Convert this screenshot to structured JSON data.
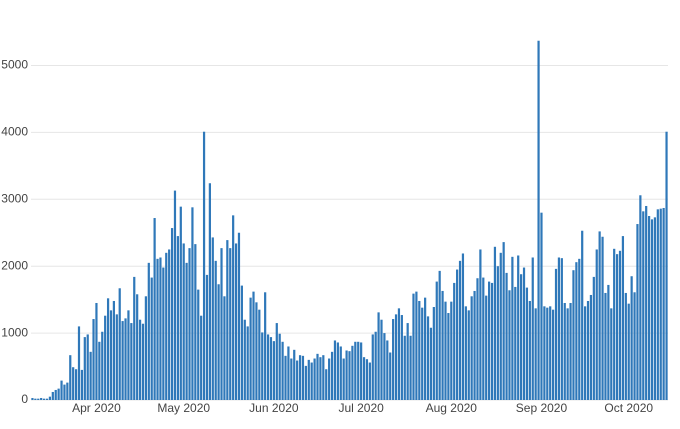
{
  "chart_data": {
    "type": "bar",
    "categories": [
      null,
      null,
      null,
      null,
      null,
      null,
      null,
      null,
      null,
      null,
      null,
      null,
      null,
      null,
      null,
      null,
      null,
      null,
      null,
      null,
      null,
      null,
      "Apr 2020",
      null,
      null,
      null,
      null,
      null,
      null,
      null,
      null,
      null,
      null,
      null,
      null,
      null,
      null,
      null,
      null,
      null,
      null,
      null,
      null,
      null,
      null,
      null,
      null,
      null,
      null,
      null,
      null,
      null,
      "May 2020",
      null,
      null,
      null,
      null,
      null,
      null,
      null,
      null,
      null,
      null,
      null,
      null,
      null,
      null,
      null,
      null,
      null,
      null,
      null,
      null,
      null,
      null,
      null,
      null,
      null,
      null,
      null,
      null,
      null,
      null,
      "Jun 2020",
      null,
      null,
      null,
      null,
      null,
      null,
      null,
      null,
      null,
      null,
      null,
      null,
      null,
      null,
      null,
      null,
      null,
      null,
      null,
      null,
      null,
      null,
      null,
      null,
      null,
      null,
      null,
      null,
      null,
      "Jul 2020",
      null,
      null,
      null,
      null,
      null,
      null,
      null,
      null,
      null,
      null,
      null,
      null,
      null,
      null,
      null,
      null,
      null,
      null,
      null,
      null,
      null,
      null,
      null,
      null,
      null,
      null,
      null,
      null,
      null,
      null,
      "Aug 2020",
      null,
      null,
      null,
      null,
      null,
      null,
      null,
      null,
      null,
      null,
      null,
      null,
      null,
      null,
      null,
      null,
      null,
      null,
      null,
      null,
      null,
      null,
      null,
      null,
      null,
      null,
      null,
      null,
      null,
      null,
      "Sep 2020",
      null,
      null,
      null,
      null,
      null,
      null,
      null,
      null,
      null,
      null,
      null,
      null,
      null,
      null,
      null,
      null,
      null,
      null,
      null,
      null,
      null,
      null,
      null,
      null,
      null,
      null,
      null,
      null,
      null,
      "Oct 2020",
      null,
      null,
      null,
      null,
      null,
      null,
      null,
      null,
      null,
      null,
      null,
      null,
      null
    ],
    "values": [
      30,
      20,
      20,
      30,
      20,
      20,
      50,
      120,
      150,
      170,
      290,
      230,
      260,
      670,
      490,
      460,
      1100,
      450,
      940,
      980,
      720,
      1210,
      1450,
      870,
      1020,
      1260,
      1520,
      1340,
      1480,
      1280,
      1670,
      1180,
      1220,
      1340,
      1150,
      1840,
      1580,
      1200,
      1140,
      1550,
      2050,
      1830,
      2720,
      2110,
      2130,
      1980,
      2200,
      2250,
      2570,
      3130,
      2450,
      2890,
      2340,
      2050,
      2270,
      2880,
      2330,
      1650,
      1260,
      4010,
      1870,
      3240,
      2430,
      2080,
      1730,
      2270,
      1550,
      2390,
      2270,
      2760,
      2340,
      2500,
      1710,
      1200,
      1100,
      1530,
      1620,
      1460,
      1350,
      1010,
      1610,
      980,
      940,
      880,
      1150,
      990,
      870,
      660,
      800,
      620,
      750,
      590,
      670,
      660,
      510,
      600,
      560,
      620,
      690,
      640,
      670,
      460,
      620,
      720,
      890,
      860,
      800,
      620,
      740,
      730,
      810,
      870,
      870,
      860,
      640,
      610,
      560,
      980,
      1020,
      1310,
      1200,
      1000,
      890,
      710,
      1210,
      1280,
      1370,
      1270,
      960,
      1150,
      960,
      1590,
      1620,
      1480,
      1380,
      1530,
      1250,
      1080,
      1390,
      1770,
      1930,
      1630,
      1470,
      1300,
      1470,
      1750,
      1950,
      2080,
      2190,
      1400,
      1340,
      1550,
      1630,
      1820,
      2250,
      1830,
      1560,
      1770,
      1750,
      2290,
      2000,
      2200,
      2360,
      1900,
      1640,
      2140,
      1690,
      2160,
      1880,
      1980,
      1680,
      1480,
      2130,
      1370,
      5370,
      2800,
      1400,
      1380,
      1400,
      1350,
      1960,
      2130,
      2120,
      1450,
      1370,
      1450,
      1940,
      2060,
      2110,
      2530,
      1400,
      1480,
      1570,
      1840,
      2250,
      2520,
      2440,
      1600,
      1720,
      1370,
      2260,
      2180,
      2230,
      2450,
      1600,
      1440,
      1850,
      1610,
      2630,
      3060,
      2820,
      2900,
      2750,
      2700,
      2730,
      2850,
      2860,
      2870,
      4010
    ],
    "color": "#2f78b9",
    "ylim": [
      0,
      5650
    ],
    "yticks": [
      0,
      1000,
      2000,
      3000,
      4000,
      5000
    ],
    "grid": true
  }
}
